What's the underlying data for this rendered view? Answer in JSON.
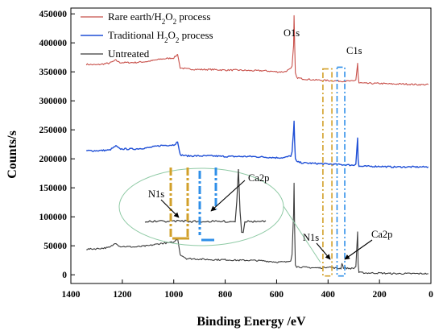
{
  "chart_data": {
    "type": "line",
    "title": "",
    "xlabel": "Binding Energy /eV",
    "ylabel": "Counts/s",
    "xlim": [
      1400,
      0
    ],
    "x_reversed": true,
    "ylim": [
      -15000,
      460000
    ],
    "xticks": [
      1400,
      1200,
      1000,
      800,
      600,
      400,
      200,
      0
    ],
    "yticks": [
      0,
      50000,
      100000,
      150000,
      200000,
      250000,
      300000,
      350000,
      400000,
      450000
    ],
    "grid": false,
    "legend_position": "top-left",
    "legend": [
      {
        "main": "Rare earth/H",
        "sub1": "2",
        "mid": "O",
        "sub2": "2",
        "tail": " process"
      },
      {
        "main": "Traditional H",
        "sub1": "2",
        "mid": "O",
        "sub2": "2",
        "tail": " process"
      },
      {
        "main": "Untreated",
        "sub1": "",
        "mid": "",
        "sub2": "",
        "tail": ""
      }
    ],
    "series": [
      {
        "name": "Rare earth/H2O2 process",
        "color": "#c8504a",
        "x": [
          1340,
          1300,
          1250,
          1225,
          1210,
          1150,
          1100,
          1050,
          1000,
          985,
          975,
          950,
          900,
          850,
          800,
          750,
          700,
          650,
          600,
          570,
          545,
          540,
          534,
          532,
          530,
          527,
          522,
          500,
          450,
          400,
          350,
          300,
          292,
          287,
          285,
          283,
          280,
          250,
          200,
          150,
          100,
          50,
          10
        ],
        "y": [
          363000,
          362000,
          365000,
          370000,
          366000,
          366000,
          368000,
          372000,
          374000,
          380000,
          357000,
          355000,
          354000,
          354000,
          353000,
          353000,
          352000,
          352000,
          350000,
          350000,
          355000,
          360000,
          395000,
          447000,
          400000,
          348000,
          340000,
          338000,
          336000,
          335000,
          334000,
          334000,
          336000,
          357000,
          365000,
          345000,
          331000,
          330000,
          330000,
          329000,
          329000,
          328000,
          328000
        ]
      },
      {
        "name": "Traditional H2O2 process",
        "color": "#1f4fd6",
        "x": [
          1340,
          1300,
          1250,
          1225,
          1210,
          1150,
          1100,
          1050,
          1000,
          985,
          975,
          950,
          900,
          850,
          800,
          750,
          700,
          650,
          600,
          570,
          545,
          540,
          534,
          532,
          530,
          527,
          522,
          500,
          450,
          400,
          350,
          300,
          292,
          287,
          285,
          283,
          280,
          250,
          200,
          150,
          100,
          50,
          10
        ],
        "y": [
          214000,
          214000,
          215000,
          222000,
          217000,
          217000,
          219000,
          223000,
          224000,
          229000,
          207000,
          205000,
          205000,
          205000,
          204000,
          204000,
          204000,
          203000,
          202000,
          202000,
          205000,
          212000,
          248000,
          265000,
          230000,
          200000,
          195000,
          193000,
          192000,
          191000,
          190000,
          189000,
          191000,
          225000,
          236000,
          200000,
          187000,
          187000,
          187000,
          186000,
          186000,
          186000,
          186000
        ]
      },
      {
        "name": "Untreated",
        "color": "#3a3a3a",
        "x": [
          1340,
          1300,
          1250,
          1225,
          1210,
          1150,
          1100,
          1050,
          1000,
          985,
          975,
          950,
          900,
          850,
          800,
          750,
          700,
          650,
          600,
          560,
          545,
          540,
          534,
          532,
          530,
          527,
          522,
          500,
          450,
          420,
          399,
          380,
          360,
          350,
          346,
          340,
          320,
          300,
          292,
          287,
          285,
          283,
          280,
          250,
          200,
          150,
          100,
          50,
          10
        ],
        "y": [
          44000,
          45000,
          47000,
          55000,
          49000,
          48000,
          50000,
          54000,
          56000,
          63000,
          35000,
          28000,
          27000,
          26000,
          26000,
          25000,
          25000,
          24000,
          22000,
          22000,
          25000,
          35000,
          105000,
          158000,
          80000,
          18000,
          14000,
          13000,
          12000,
          12000,
          14000,
          12000,
          11000,
          11000,
          20000,
          12000,
          11000,
          11000,
          14000,
          58000,
          74000,
          20000,
          4000,
          3000,
          3000,
          2000,
          2000,
          2000,
          2000
        ]
      }
    ],
    "annotations": {
      "o1s": "O1s",
      "c1s": "C1s",
      "n1s": "N1s",
      "ca2p": "Ca2p",
      "inset_n1s": "N1s",
      "inset_ca2p": "Ca2p"
    }
  }
}
